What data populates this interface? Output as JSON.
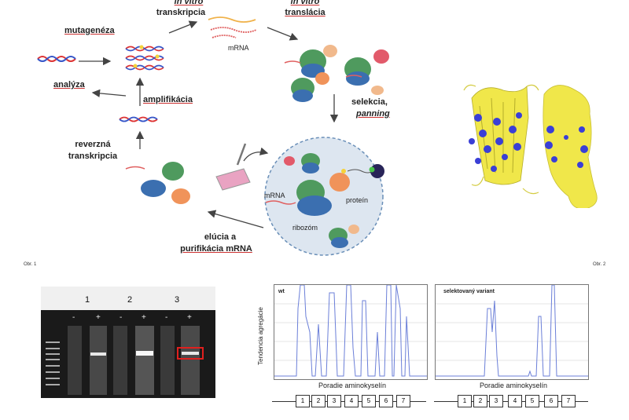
{
  "fig1": {
    "labels": {
      "in_vitro_1": "in vitro",
      "transkripcia": "transkripcia",
      "in_vitro_2": "in vitro",
      "translacia": "translácia",
      "mutageneza": "mutagenéza",
      "mrna_top": "mRNA",
      "analyza": "analýza",
      "amplifikacia": "amplifikácia",
      "selekcia": "selekcia,",
      "panning": "panning",
      "reverzna": "reverzná",
      "transkripcia2": "transkripcia",
      "mrna_inner": "mRNA",
      "protein": "proteín",
      "ribozom": "ribozóm",
      "elucia": "elúcia a",
      "purifikacia": "purifikácia mRNA"
    },
    "caption": "Obr. 1"
  },
  "fig2": {
    "caption": "Obr. 2",
    "colors": {
      "yellow": "#f0e74a",
      "blue": "#3a3fd6"
    }
  },
  "fig3": {
    "lanes": [
      "1",
      "2",
      "3"
    ],
    "signs": [
      "-",
      "+",
      "-",
      "+",
      "-",
      "+"
    ]
  },
  "fig4": {
    "ylabel": "Tendencia agregácie",
    "panels": [
      {
        "title": "wt",
        "xlabel": "Poradie aminokyselín"
      },
      {
        "title": "selektovaný variant",
        "xlabel": "Poradie aminokyselín"
      }
    ],
    "segments": [
      "1",
      "2",
      "3",
      "4",
      "5",
      "6",
      "7"
    ]
  }
}
